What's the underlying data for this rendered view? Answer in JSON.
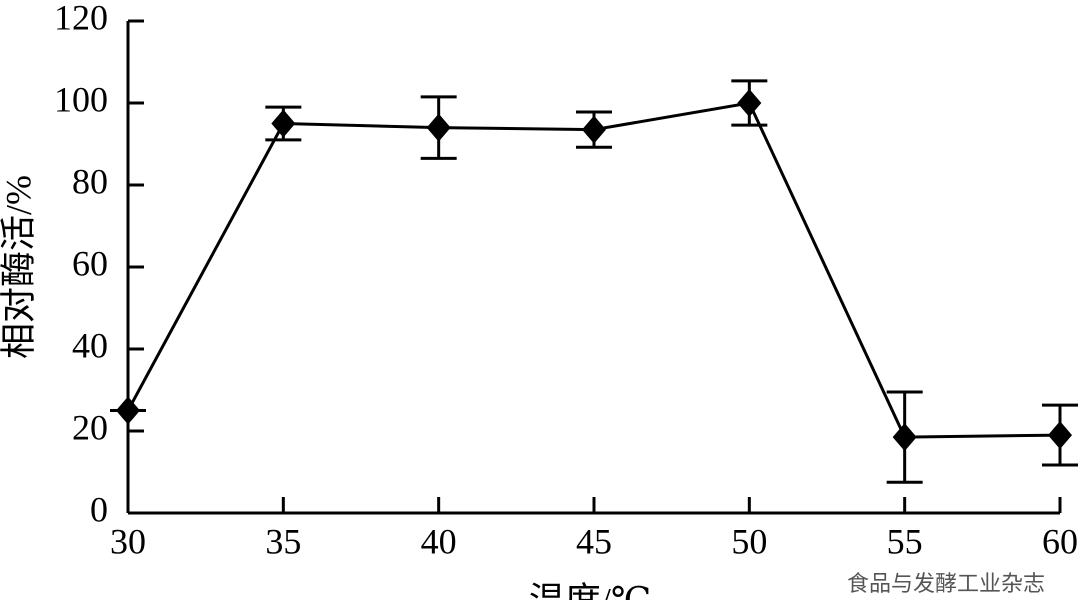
{
  "chart_data": {
    "type": "line",
    "x": [
      30,
      35,
      40,
      45,
      50,
      55,
      60
    ],
    "series": [
      {
        "color": "#000000",
        "values": [
          25,
          95,
          94,
          93.5,
          100,
          18.5,
          19
        ],
        "errors": [
          0,
          4,
          7.5,
          4.3,
          5.4,
          11,
          7.3
        ]
      }
    ],
    "xlim": [
      30,
      60
    ],
    "xticks": [
      30,
      35,
      40,
      45,
      50,
      55,
      60
    ],
    "ylim": [
      0,
      120
    ],
    "yticks": [
      0,
      20,
      40,
      60,
      80,
      100,
      120
    ],
    "xlabel": "温度/℃",
    "ylabel": "相对酶活/%",
    "watermark": "食品与发酵工业杂志"
  }
}
